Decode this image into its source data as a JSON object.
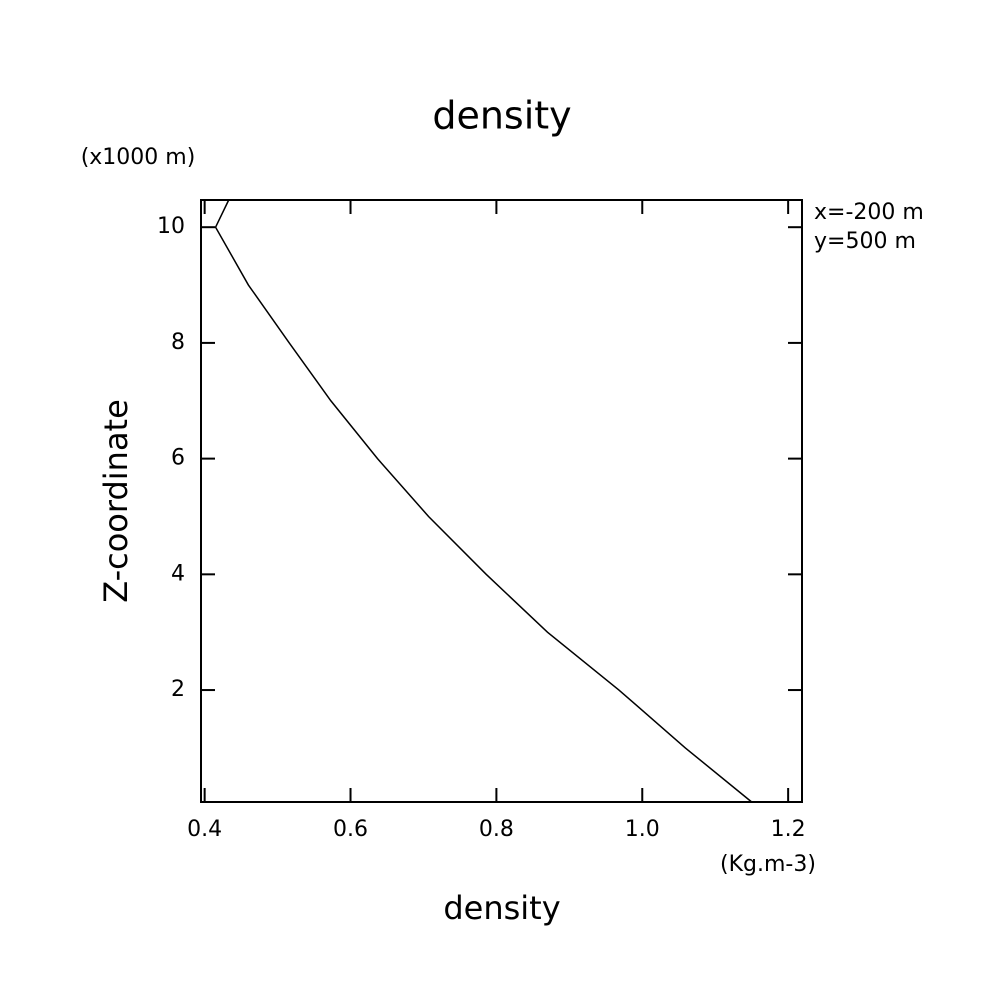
{
  "chart_data": {
    "type": "line",
    "title": "density",
    "y_unit": "(x1000 m)",
    "x_unit": "(Kg.m-3)",
    "annotations": [
      "x=-200 m",
      "y=500 m"
    ],
    "x_label": "density",
    "y_label": "Z-coordinate",
    "x": [
      1.15,
      1.059,
      0.968,
      0.87,
      0.786,
      0.707,
      0.637,
      0.573,
      0.516,
      0.46,
      0.415,
      0.433
    ],
    "values": [
      0.065,
      1,
      2,
      3,
      4,
      5,
      6,
      7,
      8,
      9,
      10,
      10.47
    ],
    "color": "#000000",
    "xlim": [
      0.395,
      1.219
    ],
    "xticks": [
      0.4,
      0.6,
      0.8,
      {
        "value": 1,
        "label": "1.0"
      },
      1.2
    ],
    "ylim": [
      0.065,
      10.47
    ],
    "yticks": [
      2,
      4,
      6,
      8,
      10
    ]
  }
}
